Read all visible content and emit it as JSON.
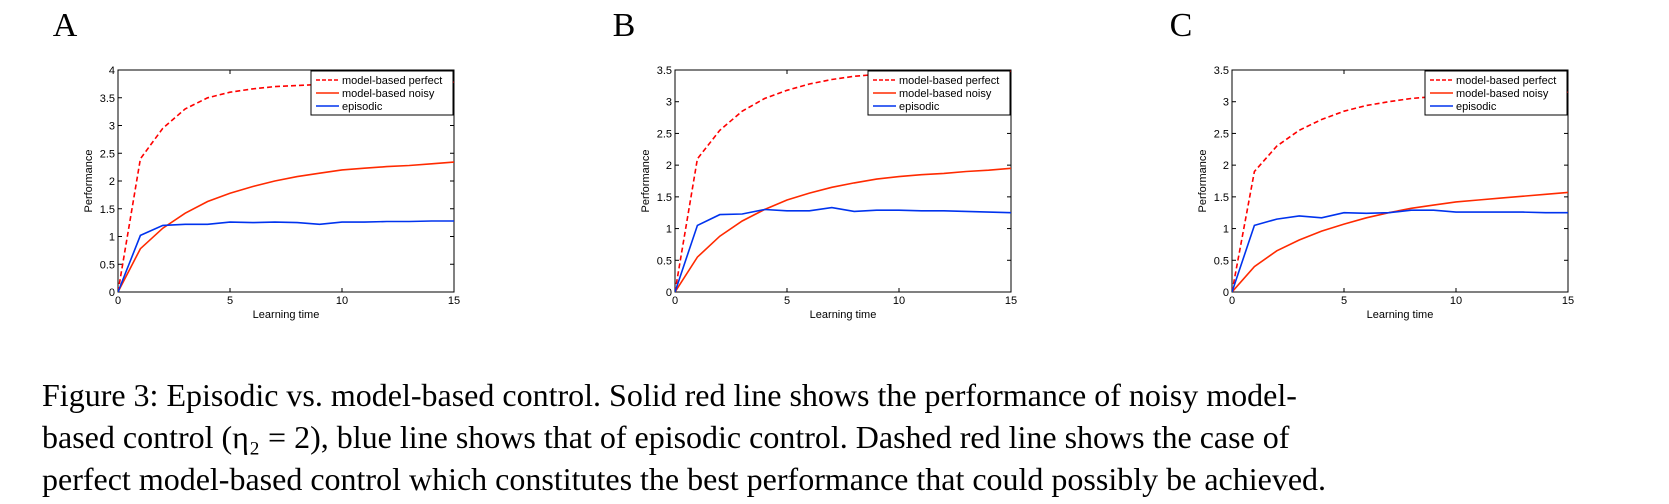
{
  "colors": {
    "perfect": "#ff0000",
    "noisy": "#ff2a00",
    "episodic": "#0033ee"
  },
  "chart_data": [
    {
      "type": "line",
      "panel": "A",
      "xlabel": "Learning time",
      "ylabel": "Performance",
      "xlim": [
        0,
        15
      ],
      "ylim": [
        0,
        4
      ],
      "xticks": [
        "0",
        "5",
        "10",
        "15"
      ],
      "yticks": [
        "0",
        "0.5",
        "1",
        "1.5",
        "2",
        "2.5",
        "3",
        "3.5",
        "4"
      ],
      "legend_position": "top-right",
      "series": [
        {
          "name": "model-based perfect",
          "style": "dashed",
          "x": [
            0,
            1,
            2,
            3,
            4,
            5,
            6,
            7,
            8,
            9,
            10,
            11,
            12,
            13,
            14,
            15
          ],
          "y": [
            0,
            2.4,
            2.95,
            3.3,
            3.5,
            3.6,
            3.66,
            3.7,
            3.72,
            3.74,
            3.75,
            3.76,
            3.77,
            3.77,
            3.78,
            3.78
          ]
        },
        {
          "name": "model-based noisy",
          "style": "solid",
          "x": [
            0,
            1,
            2,
            3,
            4,
            5,
            6,
            7,
            8,
            9,
            10,
            11,
            12,
            13,
            14,
            15
          ],
          "y": [
            0,
            0.78,
            1.15,
            1.42,
            1.63,
            1.78,
            1.9,
            2.0,
            2.08,
            2.14,
            2.2,
            2.23,
            2.26,
            2.28,
            2.31,
            2.34
          ]
        },
        {
          "name": "episodic",
          "style": "solid",
          "x": [
            0,
            1,
            2,
            3,
            4,
            5,
            6,
            7,
            8,
            9,
            10,
            11,
            12,
            13,
            14,
            15
          ],
          "y": [
            0,
            1.02,
            1.2,
            1.22,
            1.22,
            1.26,
            1.25,
            1.26,
            1.25,
            1.22,
            1.26,
            1.26,
            1.27,
            1.27,
            1.28,
            1.28
          ]
        }
      ]
    },
    {
      "type": "line",
      "panel": "B",
      "xlabel": "Learning time",
      "ylabel": "Performance",
      "xlim": [
        0,
        15
      ],
      "ylim": [
        0,
        3.5
      ],
      "xticks": [
        "0",
        "5",
        "10",
        "15"
      ],
      "yticks": [
        "0",
        "0.5",
        "1",
        "1.5",
        "2",
        "2.5",
        "3",
        "3.5"
      ],
      "legend_position": "top-right",
      "series": [
        {
          "name": "model-based perfect",
          "style": "dashed",
          "x": [
            0,
            1,
            2,
            3,
            4,
            5,
            6,
            7,
            8,
            9,
            10,
            11,
            12,
            13,
            14,
            15
          ],
          "y": [
            0,
            2.1,
            2.55,
            2.85,
            3.05,
            3.18,
            3.28,
            3.35,
            3.4,
            3.43,
            3.45,
            3.46,
            3.47,
            3.47,
            3.48,
            3.48
          ]
        },
        {
          "name": "model-based noisy",
          "style": "solid",
          "x": [
            0,
            1,
            2,
            3,
            4,
            5,
            6,
            7,
            8,
            9,
            10,
            11,
            12,
            13,
            14,
            15
          ],
          "y": [
            0,
            0.55,
            0.88,
            1.12,
            1.3,
            1.45,
            1.56,
            1.65,
            1.72,
            1.78,
            1.82,
            1.85,
            1.87,
            1.9,
            1.92,
            1.95
          ]
        },
        {
          "name": "episodic",
          "style": "solid",
          "x": [
            0,
            1,
            2,
            3,
            4,
            5,
            6,
            7,
            8,
            9,
            10,
            11,
            12,
            13,
            14,
            15
          ],
          "y": [
            0,
            1.05,
            1.22,
            1.23,
            1.3,
            1.28,
            1.28,
            1.33,
            1.27,
            1.29,
            1.29,
            1.28,
            1.28,
            1.27,
            1.26,
            1.25
          ]
        }
      ]
    },
    {
      "type": "line",
      "panel": "C",
      "xlabel": "Learning time",
      "ylabel": "Performance",
      "xlim": [
        0,
        15
      ],
      "ylim": [
        0,
        3.5
      ],
      "xticks": [
        "0",
        "5",
        "10",
        "15"
      ],
      "yticks": [
        "0",
        "0.5",
        "1",
        "1.5",
        "2",
        "2.5",
        "3",
        "3.5"
      ],
      "legend_position": "top-right",
      "series": [
        {
          "name": "model-based perfect",
          "style": "dashed",
          "x": [
            0,
            1,
            2,
            3,
            4,
            5,
            6,
            7,
            8,
            9,
            10,
            11,
            12,
            13,
            14,
            15
          ],
          "y": [
            0,
            1.9,
            2.3,
            2.55,
            2.72,
            2.85,
            2.94,
            3.0,
            3.05,
            3.08,
            3.1,
            3.11,
            3.12,
            3.13,
            3.14,
            3.15
          ]
        },
        {
          "name": "model-based noisy",
          "style": "solid",
          "x": [
            0,
            1,
            2,
            3,
            4,
            5,
            6,
            7,
            8,
            9,
            10,
            11,
            12,
            13,
            14,
            15
          ],
          "y": [
            0,
            0.4,
            0.65,
            0.82,
            0.96,
            1.07,
            1.17,
            1.25,
            1.32,
            1.37,
            1.42,
            1.45,
            1.48,
            1.51,
            1.54,
            1.57
          ]
        },
        {
          "name": "episodic",
          "style": "solid",
          "x": [
            0,
            1,
            2,
            3,
            4,
            5,
            6,
            7,
            8,
            9,
            10,
            11,
            12,
            13,
            14,
            15
          ],
          "y": [
            0,
            1.05,
            1.15,
            1.2,
            1.17,
            1.25,
            1.24,
            1.25,
            1.29,
            1.29,
            1.26,
            1.26,
            1.26,
            1.26,
            1.25,
            1.25
          ]
        }
      ]
    }
  ],
  "caption": {
    "lines": [
      "Figure 3: Episodic vs. model-based control. Solid red line shows the performance of noisy model-",
      "based control (η₂ = 2), blue line shows that of episodic control. Dashed red line shows the case of",
      "perfect model-based control which constitutes the best performance that could possibly be achieved."
    ]
  }
}
